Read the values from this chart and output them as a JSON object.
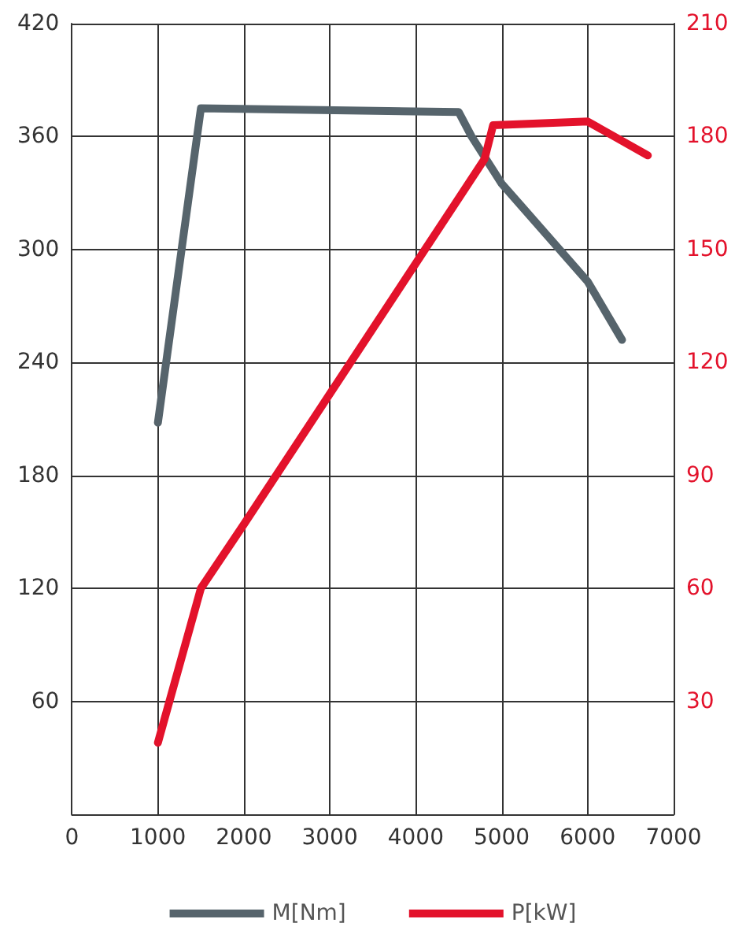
{
  "chart_data": {
    "type": "line",
    "xlim": [
      0,
      7000
    ],
    "xticks": [
      0,
      1000,
      2000,
      3000,
      4000,
      5000,
      6000,
      7000
    ],
    "ylim": [
      0,
      420
    ],
    "yticks": [
      {
        "value": 0,
        "label": null
      },
      60,
      120,
      180,
      240,
      300,
      360,
      420
    ],
    "y2lim": [
      0,
      210
    ],
    "y2ticks": [
      30,
      60,
      90,
      120,
      150,
      180,
      210
    ],
    "grid": true,
    "legend": "bottom",
    "marker": "none",
    "line_style": "solid",
    "series": [
      {
        "name": "M[Nm]",
        "color": "#56646c",
        "x": [
          1000,
          1500,
          4500,
          4650,
          5000,
          6000,
          6400
        ],
        "values": [
          208,
          375,
          373,
          360,
          335,
          283,
          252
        ]
      },
      {
        "name": "P[kW]",
        "color": "#e3122b",
        "axis": "y2",
        "x": [
          1000,
          1500,
          2000,
          4800,
          4900,
          6000,
          6700
        ],
        "values": [
          19,
          60,
          77,
          174,
          183,
          184,
          175
        ]
      }
    ]
  }
}
